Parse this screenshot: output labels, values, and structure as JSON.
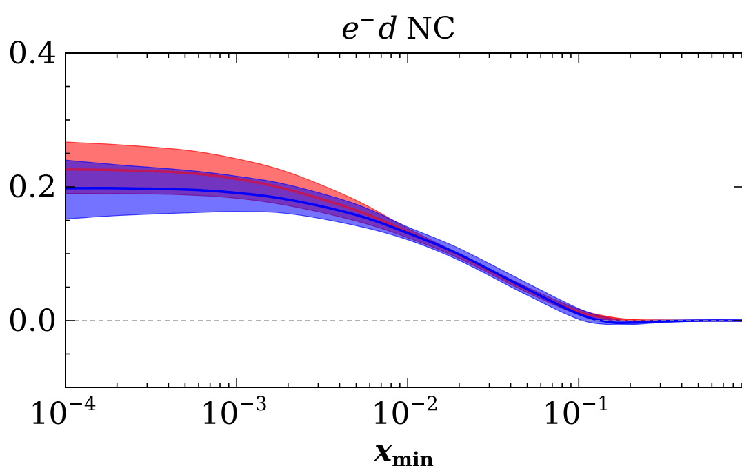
{
  "chart_data": {
    "type": "area",
    "title": {
      "base": "e",
      "sup": "−",
      "mid": "d",
      "rest": "NC"
    },
    "xlabel": {
      "main": "x",
      "sub": "min"
    },
    "ylabel": "",
    "x_scale": "log",
    "xlim": [
      0.0001,
      0.9
    ],
    "ylim": [
      -0.1,
      0.4
    ],
    "x_ticks": [
      {
        "value": 0.0001,
        "base": "10",
        "exp": "−4"
      },
      {
        "value": 0.001,
        "base": "10",
        "exp": "−3"
      },
      {
        "value": 0.01,
        "base": "10",
        "exp": "−2"
      },
      {
        "value": 0.1,
        "base": "10",
        "exp": "−1"
      }
    ],
    "y_ticks": [
      {
        "value": 0.0,
        "label": "0.0"
      },
      {
        "value": 0.2,
        "label": "0.2"
      },
      {
        "value": 0.4,
        "label": "0.4"
      }
    ],
    "reference_line": {
      "y": 0.0,
      "style": "dashed",
      "color": "#999999"
    },
    "grid": false,
    "legend": "none",
    "x": [
      0.0001,
      0.0002,
      0.0005,
      0.001,
      0.002,
      0.005,
      0.01,
      0.02,
      0.05,
      0.1,
      0.15,
      0.2,
      0.3,
      0.5,
      0.9
    ],
    "series": [
      {
        "color": "#ff0000",
        "band_opacity": 0.55,
        "central": [
          0.226,
          0.225,
          0.221,
          0.212,
          0.196,
          0.165,
          0.133,
          0.098,
          0.046,
          0.013,
          0.004,
          0.001,
          0.0,
          0.0,
          0.0
        ],
        "upper": [
          0.267,
          0.263,
          0.255,
          0.242,
          0.222,
          0.18,
          0.138,
          0.1,
          0.05,
          0.017,
          0.006,
          0.002,
          0.0,
          0.0,
          0.0
        ],
        "lower": [
          0.19,
          0.19,
          0.188,
          0.183,
          0.172,
          0.149,
          0.124,
          0.093,
          0.042,
          0.009,
          0.001,
          0.0,
          0.0,
          0.0,
          0.0
        ]
      },
      {
        "color": "#0000ff",
        "band_opacity": 0.55,
        "central": [
          0.198,
          0.198,
          0.196,
          0.191,
          0.181,
          0.158,
          0.131,
          0.099,
          0.047,
          0.01,
          -0.002,
          -0.003,
          -0.001,
          0.0,
          0.0
        ],
        "upper": [
          0.24,
          0.233,
          0.225,
          0.216,
          0.203,
          0.174,
          0.14,
          0.108,
          0.056,
          0.018,
          0.004,
          0.0,
          0.001,
          0.0,
          0.0
        ],
        "lower": [
          0.152,
          0.157,
          0.161,
          0.163,
          0.16,
          0.142,
          0.121,
          0.09,
          0.038,
          0.002,
          -0.006,
          -0.006,
          -0.003,
          -0.001,
          0.0
        ]
      }
    ]
  }
}
